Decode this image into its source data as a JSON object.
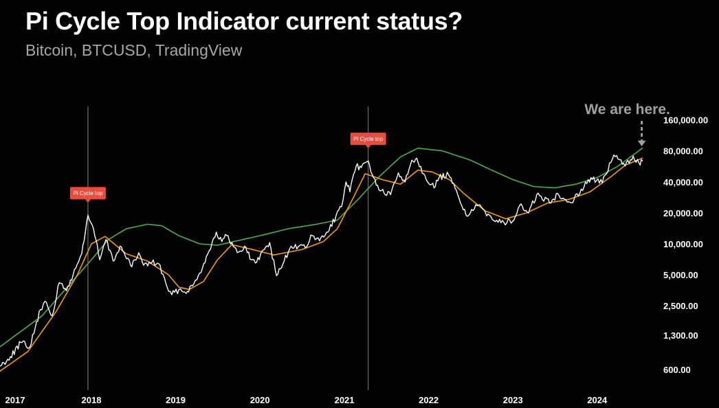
{
  "title": "Pi Cycle Top Indicator current status?",
  "subtitle": "Bitcoin, BTCUSD, TradingView",
  "colors": {
    "background": "#000000",
    "price": "#ffffff",
    "ma_long": "#4caf50",
    "ma_short": "#f39c12",
    "signal_box": "#e74c3c",
    "signal_line": "#888888",
    "annotation": "#a0a0a0",
    "axis_text": "#ffffff"
  },
  "chart_data": {
    "type": "line",
    "y_scale": "log",
    "ylim": [
      500,
      200000
    ],
    "xlim": [
      "2016-12-01",
      "2024-07-31"
    ],
    "y_ticks": [
      {
        "value": 600,
        "label": "600.00"
      },
      {
        "value": 1300,
        "label": "1,300.00"
      },
      {
        "value": 2500,
        "label": "2,500.00"
      },
      {
        "value": 5000,
        "label": "5,000.00"
      },
      {
        "value": 10000,
        "label": "10,000.00"
      },
      {
        "value": 20000,
        "label": "20,000.00"
      },
      {
        "value": 40000,
        "label": "40,000.00"
      },
      {
        "value": 80000,
        "label": "80,000.00"
      },
      {
        "value": 160000,
        "label": "160,000.00"
      }
    ],
    "x_ticks": [
      {
        "date": "2017-01-01",
        "label": "2017"
      },
      {
        "date": "2018-01-01",
        "label": "2018"
      },
      {
        "date": "2019-01-01",
        "label": "2019"
      },
      {
        "date": "2020-01-01",
        "label": "2020"
      },
      {
        "date": "2021-01-01",
        "label": "2021"
      },
      {
        "date": "2022-01-01",
        "label": "2022"
      },
      {
        "date": "2023-01-01",
        "label": "2023"
      },
      {
        "date": "2024-01-01",
        "label": "2024"
      }
    ],
    "series": [
      {
        "key": "price",
        "points": [
          [
            "2016-12-01",
            650
          ],
          [
            "2017-01-15",
            800
          ],
          [
            "2017-03-01",
            1100
          ],
          [
            "2017-04-10",
            1000
          ],
          [
            "2017-05-25",
            2300
          ],
          [
            "2017-06-20",
            2700
          ],
          [
            "2017-07-15",
            2000
          ],
          [
            "2017-08-15",
            4200
          ],
          [
            "2017-09-15",
            3500
          ],
          [
            "2017-10-25",
            5800
          ],
          [
            "2017-11-20",
            8000
          ],
          [
            "2017-12-17",
            19000
          ],
          [
            "2018-01-10",
            14000
          ],
          [
            "2018-02-06",
            7000
          ],
          [
            "2018-03-05",
            11000
          ],
          [
            "2018-04-05",
            6800
          ],
          [
            "2018-05-05",
            9500
          ],
          [
            "2018-06-25",
            6000
          ],
          [
            "2018-07-25",
            8200
          ],
          [
            "2018-08-15",
            6200
          ],
          [
            "2018-09-20",
            6600
          ],
          [
            "2018-10-20",
            6400
          ],
          [
            "2018-11-25",
            3800
          ],
          [
            "2018-12-15",
            3200
          ],
          [
            "2019-01-15",
            3600
          ],
          [
            "2019-02-10",
            3400
          ],
          [
            "2019-03-15",
            3900
          ],
          [
            "2019-04-15",
            5200
          ],
          [
            "2019-05-20",
            8000
          ],
          [
            "2019-06-26",
            13000
          ],
          [
            "2019-07-20",
            10500
          ],
          [
            "2019-08-10",
            12000
          ],
          [
            "2019-09-25",
            8200
          ],
          [
            "2019-10-26",
            9500
          ],
          [
            "2019-11-25",
            7000
          ],
          [
            "2019-12-18",
            6600
          ],
          [
            "2020-01-15",
            8700
          ],
          [
            "2020-02-12",
            10300
          ],
          [
            "2020-03-13",
            4900
          ],
          [
            "2020-04-15",
            6800
          ],
          [
            "2020-05-15",
            9500
          ],
          [
            "2020-06-15",
            9400
          ],
          [
            "2020-07-15",
            9200
          ],
          [
            "2020-08-15",
            12000
          ],
          [
            "2020-09-15",
            10700
          ],
          [
            "2020-10-21",
            13000
          ],
          [
            "2020-11-25",
            18500
          ],
          [
            "2020-12-20",
            23000
          ],
          [
            "2021-01-08",
            40000
          ],
          [
            "2021-01-25",
            32000
          ],
          [
            "2021-02-21",
            57000
          ],
          [
            "2021-03-15",
            55000
          ],
          [
            "2021-04-14",
            64000
          ],
          [
            "2021-05-19",
            37000
          ],
          [
            "2021-06-22",
            31000
          ],
          [
            "2021-07-20",
            30000
          ],
          [
            "2021-08-23",
            49000
          ],
          [
            "2021-09-21",
            40000
          ],
          [
            "2021-10-20",
            65000
          ],
          [
            "2021-11-10",
            68000
          ],
          [
            "2021-12-10",
            48000
          ],
          [
            "2022-01-24",
            35000
          ],
          [
            "2022-02-15",
            44000
          ],
          [
            "2022-03-28",
            47000
          ],
          [
            "2022-05-12",
            28000
          ],
          [
            "2022-06-18",
            18500
          ],
          [
            "2022-07-30",
            23500
          ],
          [
            "2022-09-15",
            19500
          ],
          [
            "2022-11-10",
            16000
          ],
          [
            "2022-12-30",
            16500
          ],
          [
            "2023-01-30",
            23500
          ],
          [
            "2023-03-10",
            20000
          ],
          [
            "2023-04-14",
            30000
          ],
          [
            "2023-06-15",
            25000
          ],
          [
            "2023-07-13",
            31000
          ],
          [
            "2023-09-11",
            25000
          ],
          [
            "2023-10-24",
            34000
          ],
          [
            "2023-12-05",
            44000
          ],
          [
            "2024-01-23",
            39000
          ],
          [
            "2024-03-13",
            73000
          ],
          [
            "2024-05-01",
            57000
          ],
          [
            "2024-06-05",
            71000
          ],
          [
            "2024-06-30",
            61000
          ],
          [
            "2024-07-15",
            64000
          ]
        ]
      },
      {
        "key": "ma_long",
        "points": [
          [
            "2016-12-01",
            1000
          ],
          [
            "2017-06-01",
            2000
          ],
          [
            "2018-01-01",
            7000
          ],
          [
            "2018-03-15",
            11000
          ],
          [
            "2018-06-01",
            14000
          ],
          [
            "2018-09-01",
            15500
          ],
          [
            "2018-11-01",
            15000
          ],
          [
            "2019-01-15",
            12000
          ],
          [
            "2019-04-15",
            10000
          ],
          [
            "2019-07-01",
            9700
          ],
          [
            "2020-01-01",
            12000
          ],
          [
            "2020-05-01",
            14000
          ],
          [
            "2020-09-01",
            15500
          ],
          [
            "2020-12-01",
            17000
          ],
          [
            "2021-03-01",
            27000
          ],
          [
            "2021-06-01",
            45000
          ],
          [
            "2021-09-01",
            70000
          ],
          [
            "2021-11-15",
            85000
          ],
          [
            "2022-03-01",
            80000
          ],
          [
            "2022-07-01",
            65000
          ],
          [
            "2022-10-01",
            52000
          ],
          [
            "2023-01-01",
            42000
          ],
          [
            "2023-04-01",
            36000
          ],
          [
            "2023-07-01",
            35000
          ],
          [
            "2023-10-01",
            38000
          ],
          [
            "2024-01-01",
            44000
          ],
          [
            "2024-04-01",
            57000
          ],
          [
            "2024-07-15",
            85000
          ]
        ]
      },
      {
        "key": "ma_short",
        "points": [
          [
            "2016-12-01",
            580
          ],
          [
            "2017-04-01",
            900
          ],
          [
            "2017-08-01",
            2200
          ],
          [
            "2017-11-01",
            5000
          ],
          [
            "2018-01-01",
            10000
          ],
          [
            "2018-03-01",
            11800
          ],
          [
            "2018-06-01",
            8000
          ],
          [
            "2018-09-01",
            6800
          ],
          [
            "2018-12-01",
            5000
          ],
          [
            "2019-01-15",
            3800
          ],
          [
            "2019-03-01",
            3600
          ],
          [
            "2019-05-01",
            4300
          ],
          [
            "2019-07-01",
            7000
          ],
          [
            "2019-09-01",
            9800
          ],
          [
            "2019-12-01",
            8800
          ],
          [
            "2020-03-01",
            7800
          ],
          [
            "2020-07-01",
            8800
          ],
          [
            "2020-10-01",
            10500
          ],
          [
            "2020-12-01",
            14000
          ],
          [
            "2021-02-01",
            26000
          ],
          [
            "2021-04-01",
            48000
          ],
          [
            "2021-06-15",
            42000
          ],
          [
            "2021-09-01",
            38000
          ],
          [
            "2021-11-15",
            52000
          ],
          [
            "2022-01-15",
            50000
          ],
          [
            "2022-04-01",
            42000
          ],
          [
            "2022-06-01",
            31000
          ],
          [
            "2022-09-01",
            21000
          ],
          [
            "2022-12-01",
            17500
          ],
          [
            "2023-03-01",
            20000
          ],
          [
            "2023-06-01",
            25000
          ],
          [
            "2023-09-01",
            27000
          ],
          [
            "2023-12-01",
            32000
          ],
          [
            "2024-03-01",
            45000
          ],
          [
            "2024-05-01",
            58000
          ],
          [
            "2024-07-15",
            68000
          ]
        ]
      }
    ],
    "markers": [
      {
        "date": "2017-12-17",
        "value": 19000,
        "label": "Pi Cycle top"
      },
      {
        "date": "2021-04-14",
        "value": 64000,
        "label": "Pi Cycle top"
      }
    ],
    "annotation": {
      "text": "We are here.",
      "date": "2024-07-15",
      "value": 85000
    }
  }
}
